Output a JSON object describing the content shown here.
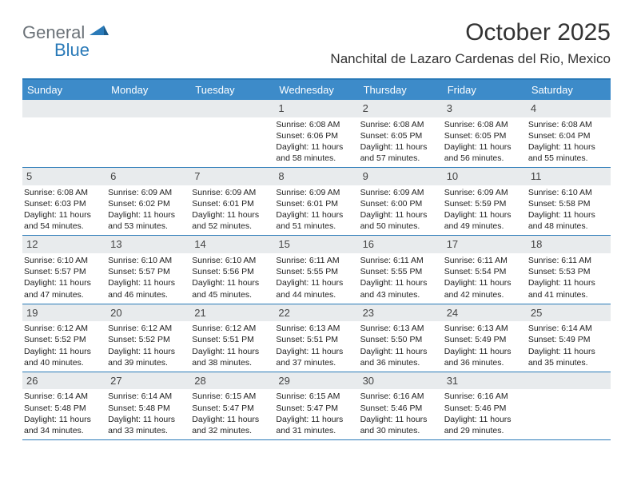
{
  "logo": {
    "part1": "General",
    "part2": "Blue"
  },
  "header": {
    "month_title": "October 2025",
    "location": "Nanchital de Lazaro Cardenas del Rio, Mexico"
  },
  "colors": {
    "header_bar": "#3d8bc9",
    "border": "#2a7ab8",
    "day_num_bg": "#e8ebed",
    "logo_gray": "#6b7278",
    "logo_blue": "#2a7ab8"
  },
  "weekdays": [
    "Sunday",
    "Monday",
    "Tuesday",
    "Wednesday",
    "Thursday",
    "Friday",
    "Saturday"
  ],
  "weeks": [
    [
      {
        "n": "",
        "sr": "",
        "ss": "",
        "dl1": "",
        "dl2": ""
      },
      {
        "n": "",
        "sr": "",
        "ss": "",
        "dl1": "",
        "dl2": ""
      },
      {
        "n": "",
        "sr": "",
        "ss": "",
        "dl1": "",
        "dl2": ""
      },
      {
        "n": "1",
        "sr": "Sunrise: 6:08 AM",
        "ss": "Sunset: 6:06 PM",
        "dl1": "Daylight: 11 hours",
        "dl2": "and 58 minutes."
      },
      {
        "n": "2",
        "sr": "Sunrise: 6:08 AM",
        "ss": "Sunset: 6:05 PM",
        "dl1": "Daylight: 11 hours",
        "dl2": "and 57 minutes."
      },
      {
        "n": "3",
        "sr": "Sunrise: 6:08 AM",
        "ss": "Sunset: 6:05 PM",
        "dl1": "Daylight: 11 hours",
        "dl2": "and 56 minutes."
      },
      {
        "n": "4",
        "sr": "Sunrise: 6:08 AM",
        "ss": "Sunset: 6:04 PM",
        "dl1": "Daylight: 11 hours",
        "dl2": "and 55 minutes."
      }
    ],
    [
      {
        "n": "5",
        "sr": "Sunrise: 6:08 AM",
        "ss": "Sunset: 6:03 PM",
        "dl1": "Daylight: 11 hours",
        "dl2": "and 54 minutes."
      },
      {
        "n": "6",
        "sr": "Sunrise: 6:09 AM",
        "ss": "Sunset: 6:02 PM",
        "dl1": "Daylight: 11 hours",
        "dl2": "and 53 minutes."
      },
      {
        "n": "7",
        "sr": "Sunrise: 6:09 AM",
        "ss": "Sunset: 6:01 PM",
        "dl1": "Daylight: 11 hours",
        "dl2": "and 52 minutes."
      },
      {
        "n": "8",
        "sr": "Sunrise: 6:09 AM",
        "ss": "Sunset: 6:01 PM",
        "dl1": "Daylight: 11 hours",
        "dl2": "and 51 minutes."
      },
      {
        "n": "9",
        "sr": "Sunrise: 6:09 AM",
        "ss": "Sunset: 6:00 PM",
        "dl1": "Daylight: 11 hours",
        "dl2": "and 50 minutes."
      },
      {
        "n": "10",
        "sr": "Sunrise: 6:09 AM",
        "ss": "Sunset: 5:59 PM",
        "dl1": "Daylight: 11 hours",
        "dl2": "and 49 minutes."
      },
      {
        "n": "11",
        "sr": "Sunrise: 6:10 AM",
        "ss": "Sunset: 5:58 PM",
        "dl1": "Daylight: 11 hours",
        "dl2": "and 48 minutes."
      }
    ],
    [
      {
        "n": "12",
        "sr": "Sunrise: 6:10 AM",
        "ss": "Sunset: 5:57 PM",
        "dl1": "Daylight: 11 hours",
        "dl2": "and 47 minutes."
      },
      {
        "n": "13",
        "sr": "Sunrise: 6:10 AM",
        "ss": "Sunset: 5:57 PM",
        "dl1": "Daylight: 11 hours",
        "dl2": "and 46 minutes."
      },
      {
        "n": "14",
        "sr": "Sunrise: 6:10 AM",
        "ss": "Sunset: 5:56 PM",
        "dl1": "Daylight: 11 hours",
        "dl2": "and 45 minutes."
      },
      {
        "n": "15",
        "sr": "Sunrise: 6:11 AM",
        "ss": "Sunset: 5:55 PM",
        "dl1": "Daylight: 11 hours",
        "dl2": "and 44 minutes."
      },
      {
        "n": "16",
        "sr": "Sunrise: 6:11 AM",
        "ss": "Sunset: 5:55 PM",
        "dl1": "Daylight: 11 hours",
        "dl2": "and 43 minutes."
      },
      {
        "n": "17",
        "sr": "Sunrise: 6:11 AM",
        "ss": "Sunset: 5:54 PM",
        "dl1": "Daylight: 11 hours",
        "dl2": "and 42 minutes."
      },
      {
        "n": "18",
        "sr": "Sunrise: 6:11 AM",
        "ss": "Sunset: 5:53 PM",
        "dl1": "Daylight: 11 hours",
        "dl2": "and 41 minutes."
      }
    ],
    [
      {
        "n": "19",
        "sr": "Sunrise: 6:12 AM",
        "ss": "Sunset: 5:52 PM",
        "dl1": "Daylight: 11 hours",
        "dl2": "and 40 minutes."
      },
      {
        "n": "20",
        "sr": "Sunrise: 6:12 AM",
        "ss": "Sunset: 5:52 PM",
        "dl1": "Daylight: 11 hours",
        "dl2": "and 39 minutes."
      },
      {
        "n": "21",
        "sr": "Sunrise: 6:12 AM",
        "ss": "Sunset: 5:51 PM",
        "dl1": "Daylight: 11 hours",
        "dl2": "and 38 minutes."
      },
      {
        "n": "22",
        "sr": "Sunrise: 6:13 AM",
        "ss": "Sunset: 5:51 PM",
        "dl1": "Daylight: 11 hours",
        "dl2": "and 37 minutes."
      },
      {
        "n": "23",
        "sr": "Sunrise: 6:13 AM",
        "ss": "Sunset: 5:50 PM",
        "dl1": "Daylight: 11 hours",
        "dl2": "and 36 minutes."
      },
      {
        "n": "24",
        "sr": "Sunrise: 6:13 AM",
        "ss": "Sunset: 5:49 PM",
        "dl1": "Daylight: 11 hours",
        "dl2": "and 36 minutes."
      },
      {
        "n": "25",
        "sr": "Sunrise: 6:14 AM",
        "ss": "Sunset: 5:49 PM",
        "dl1": "Daylight: 11 hours",
        "dl2": "and 35 minutes."
      }
    ],
    [
      {
        "n": "26",
        "sr": "Sunrise: 6:14 AM",
        "ss": "Sunset: 5:48 PM",
        "dl1": "Daylight: 11 hours",
        "dl2": "and 34 minutes."
      },
      {
        "n": "27",
        "sr": "Sunrise: 6:14 AM",
        "ss": "Sunset: 5:48 PM",
        "dl1": "Daylight: 11 hours",
        "dl2": "and 33 minutes."
      },
      {
        "n": "28",
        "sr": "Sunrise: 6:15 AM",
        "ss": "Sunset: 5:47 PM",
        "dl1": "Daylight: 11 hours",
        "dl2": "and 32 minutes."
      },
      {
        "n": "29",
        "sr": "Sunrise: 6:15 AM",
        "ss": "Sunset: 5:47 PM",
        "dl1": "Daylight: 11 hours",
        "dl2": "and 31 minutes."
      },
      {
        "n": "30",
        "sr": "Sunrise: 6:16 AM",
        "ss": "Sunset: 5:46 PM",
        "dl1": "Daylight: 11 hours",
        "dl2": "and 30 minutes."
      },
      {
        "n": "31",
        "sr": "Sunrise: 6:16 AM",
        "ss": "Sunset: 5:46 PM",
        "dl1": "Daylight: 11 hours",
        "dl2": "and 29 minutes."
      },
      {
        "n": "",
        "sr": "",
        "ss": "",
        "dl1": "",
        "dl2": ""
      }
    ]
  ]
}
